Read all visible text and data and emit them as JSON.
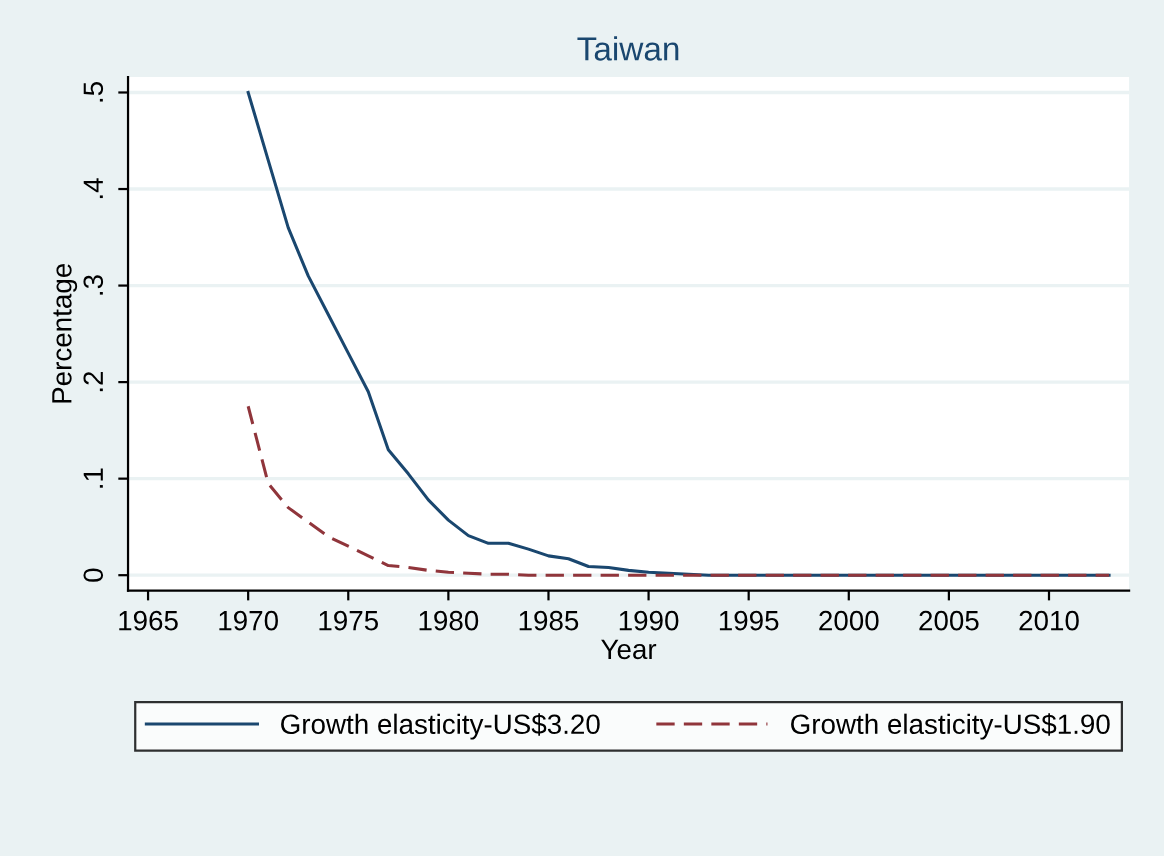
{
  "chart_data": {
    "type": "line",
    "title": "Taiwan",
    "xlabel": "Year",
    "ylabel": "Percentage",
    "x": [
      1970,
      1971,
      1972,
      1973,
      1974,
      1975,
      1976,
      1977,
      1978,
      1979,
      1980,
      1981,
      1982,
      1983,
      1984,
      1985,
      1986,
      1987,
      1988,
      1989,
      1990,
      1991,
      1992,
      1993,
      1994,
      1995,
      1996,
      1997,
      1998,
      1999,
      2000,
      2001,
      2002,
      2003,
      2004,
      2005,
      2006,
      2007,
      2008,
      2009,
      2010,
      2011,
      2012,
      2013
    ],
    "series": [
      {
        "name": "Growth elasticity-US$3.20",
        "color": "#1a476f",
        "line_style": "solid",
        "values": [
          0.5,
          0.43,
          0.36,
          0.31,
          0.27,
          0.23,
          0.19,
          0.13,
          0.105,
          0.078,
          0.057,
          0.041,
          0.033,
          0.033,
          0.027,
          0.02,
          0.017,
          0.009,
          0.008,
          0.005,
          0.003,
          0.002,
          0.001,
          0,
          0,
          0,
          0,
          0,
          0,
          0,
          0,
          0,
          0,
          0,
          0,
          0,
          0,
          0,
          0,
          0,
          0,
          0,
          0,
          0
        ]
      },
      {
        "name": "Growth elasticity-US$1.90",
        "color": "#90353b",
        "line_style": "dashed",
        "values": [
          0.175,
          0.095,
          0.07,
          0.055,
          0.04,
          0.03,
          0.02,
          0.01,
          0.008,
          0.005,
          0.003,
          0.002,
          0.001,
          0.001,
          0,
          0,
          0,
          0,
          0,
          0,
          0,
          0,
          0,
          0,
          0,
          0,
          0,
          0,
          0,
          0,
          0,
          0,
          0,
          0,
          0,
          0,
          0,
          0,
          0,
          0,
          0,
          0,
          0,
          0
        ]
      }
    ],
    "xlim": [
      1964,
      2014
    ],
    "xticks": [
      1965,
      1970,
      1975,
      1980,
      1985,
      1990,
      1995,
      2000,
      2005,
      2010
    ],
    "ylim": [
      -0.016,
      0.516
    ],
    "yticks": [
      {
        "value": 0,
        "label": "0"
      },
      {
        "value": 0.1,
        "label": ".1"
      },
      {
        "value": 0.2,
        "label": ".2"
      },
      {
        "value": 0.3,
        "label": ".3"
      },
      {
        "value": 0.4,
        "label": ".4"
      },
      {
        "value": 0.5,
        "label": ".5"
      }
    ],
    "grid": "y",
    "legend": "bottom",
    "marker": "none"
  }
}
